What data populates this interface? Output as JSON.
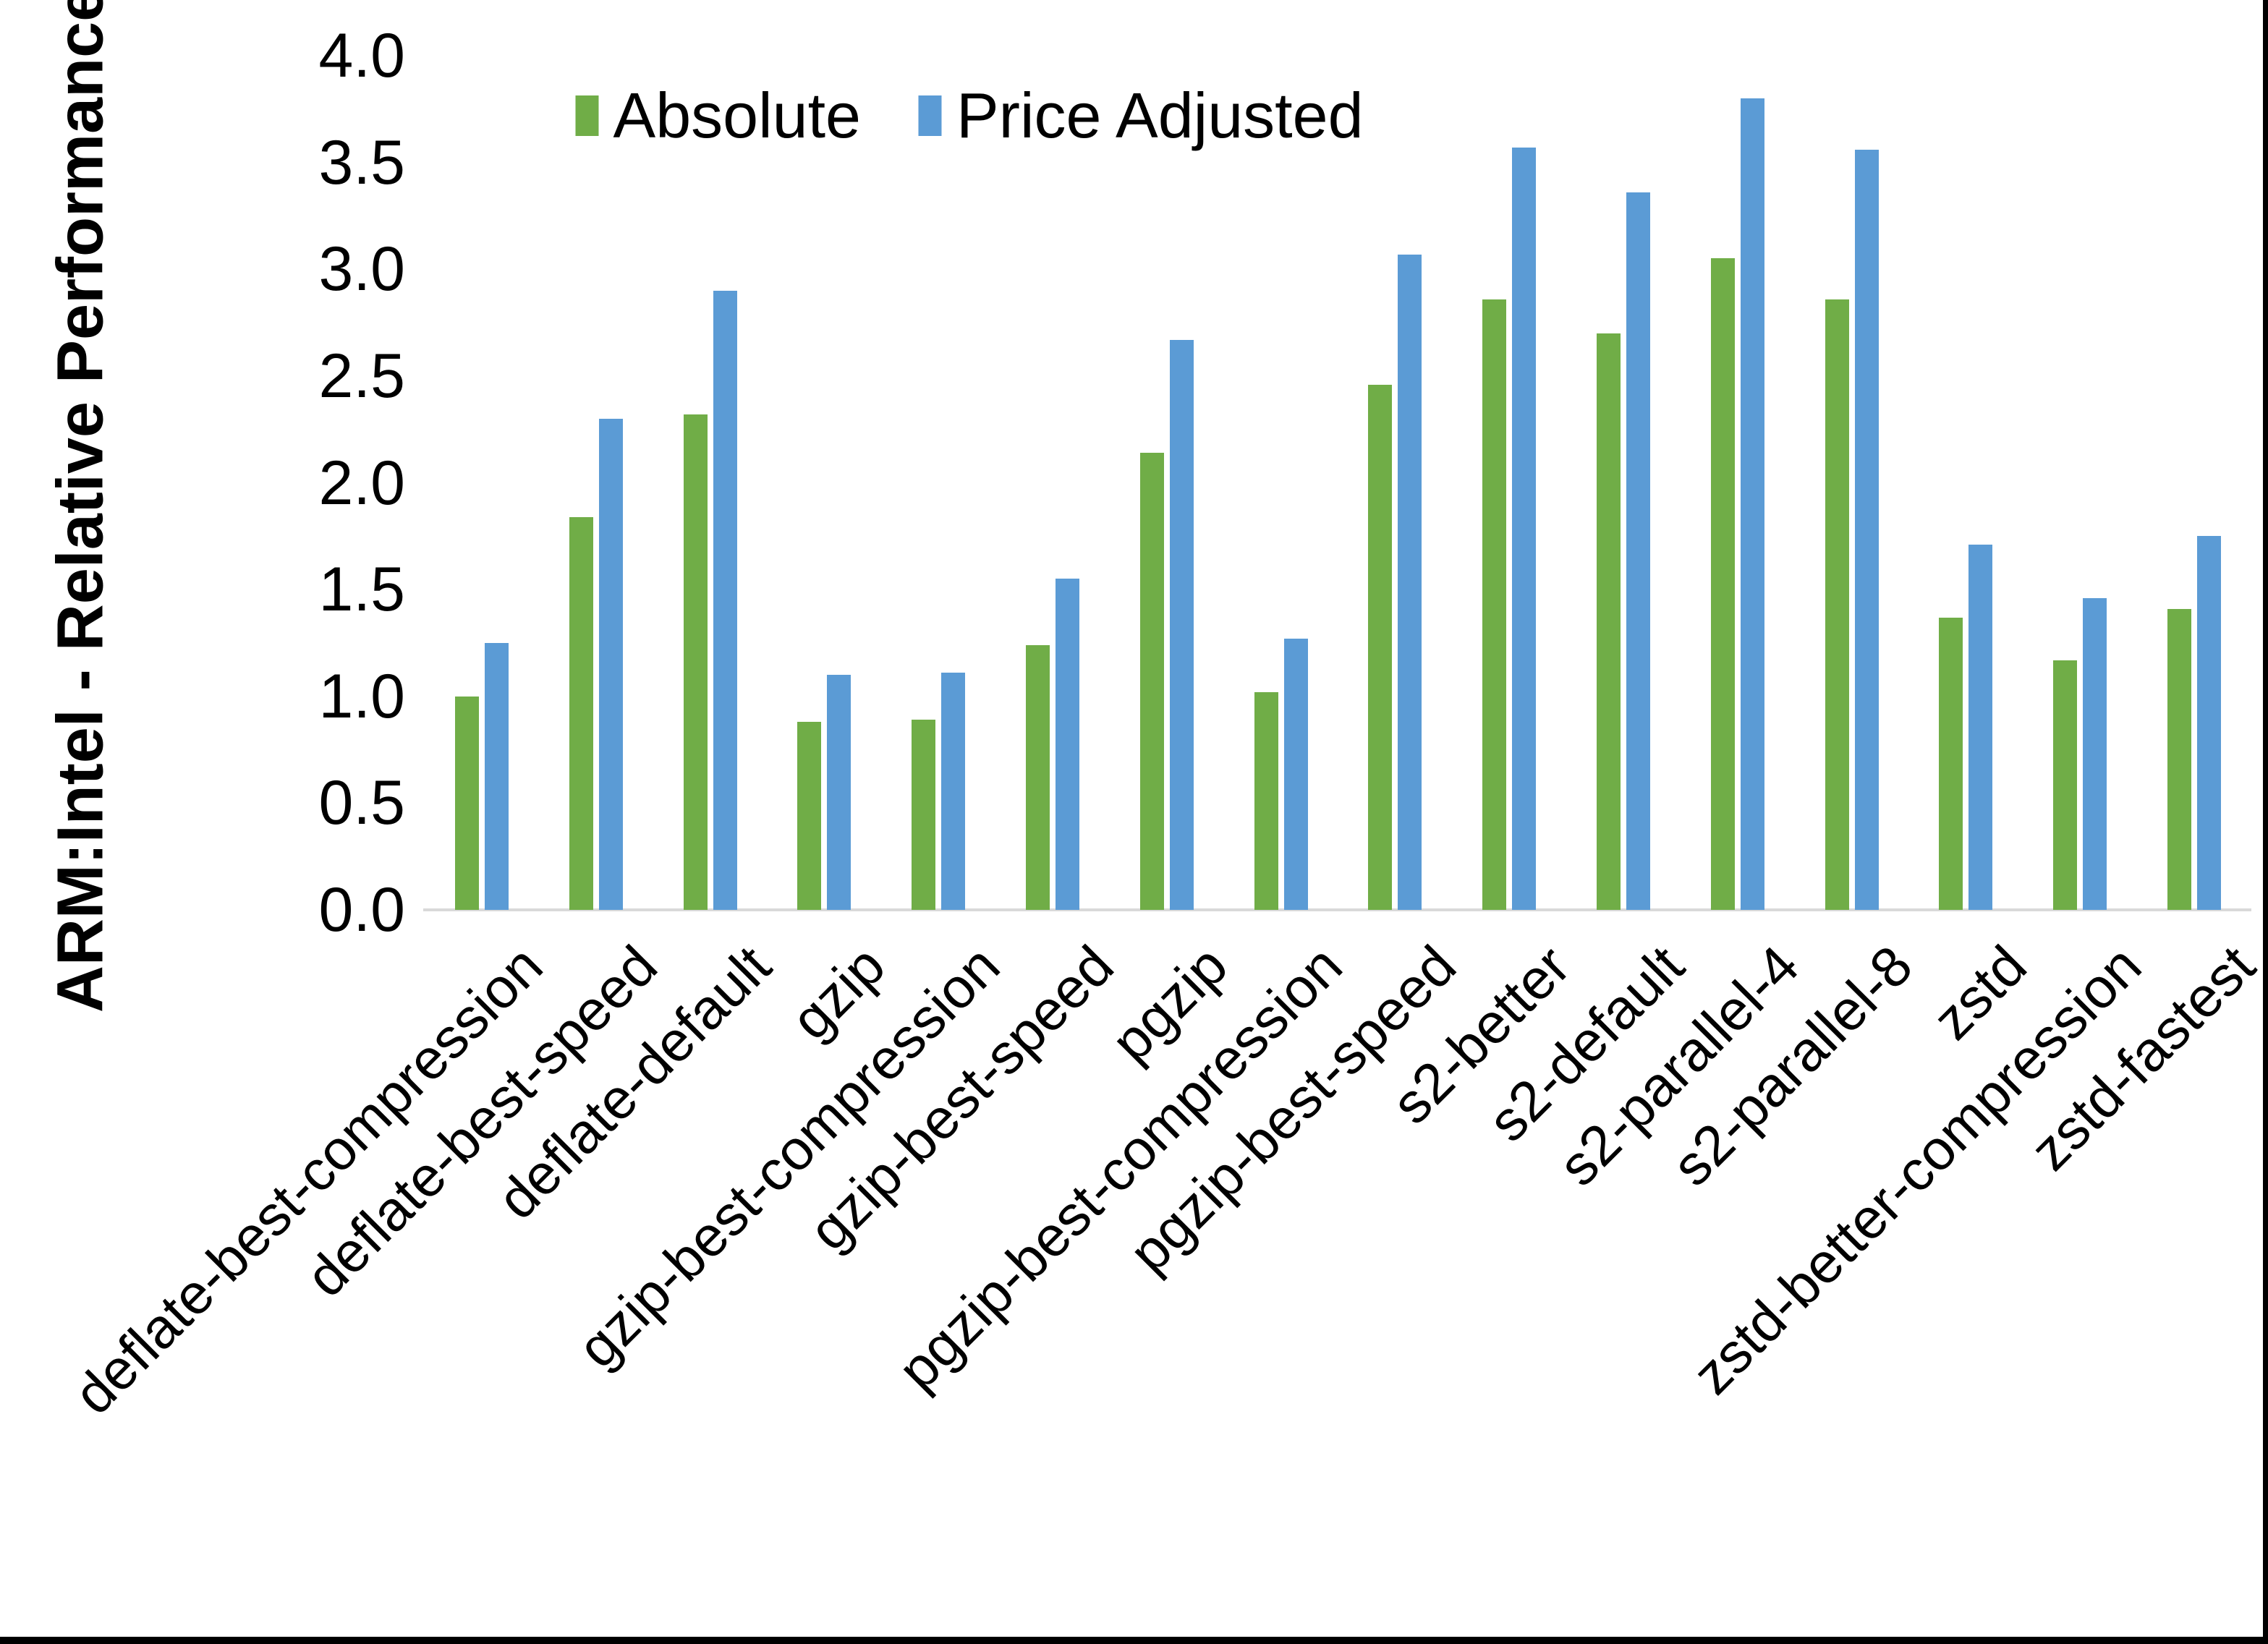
{
  "chart_data": {
    "type": "bar",
    "title": "",
    "xlabel": "",
    "ylabel": "ARM:Intel - Relative Performance",
    "ylim": [
      0.0,
      4.0
    ],
    "ytick_step": 0.5,
    "ytick_labels": [
      "4.0",
      "3.5",
      "3.0",
      "2.5",
      "2.0",
      "1.5",
      "1.0",
      "0.5",
      "0.0"
    ],
    "grid": false,
    "legend_position": "top-center",
    "background_color": "#FFFFFF",
    "text_color": "#000000",
    "axis_line_color": "#D9D9D9",
    "page_border_color": "#000000",
    "categories": [
      "deflate-best-compression",
      "deflate-best-speed",
      "deflate-default",
      "gzip",
      "gzip-best-compression",
      "gzip-best-speed",
      "pgzip",
      "pgzip-best-compression",
      "pgzip-best-speed",
      "s2-better",
      "s2-default",
      "s2-parallel-4",
      "s2-parallel-8",
      "zstd",
      "zstd-better-compression",
      "zstd-fastest"
    ],
    "series": [
      {
        "name": "Absolute",
        "color": "#70AD47",
        "values": [
          1.0,
          1.84,
          2.32,
          0.88,
          0.89,
          1.24,
          2.14,
          1.02,
          2.46,
          2.86,
          2.7,
          3.05,
          2.86,
          1.37,
          1.17,
          1.41
        ]
      },
      {
        "name": "Price Adjusted",
        "color": "#5B9BD5",
        "values": [
          1.25,
          2.3,
          2.9,
          1.1,
          1.11,
          1.55,
          2.67,
          1.27,
          3.07,
          3.57,
          3.36,
          3.8,
          3.56,
          1.71,
          1.46,
          1.75
        ]
      }
    ]
  }
}
